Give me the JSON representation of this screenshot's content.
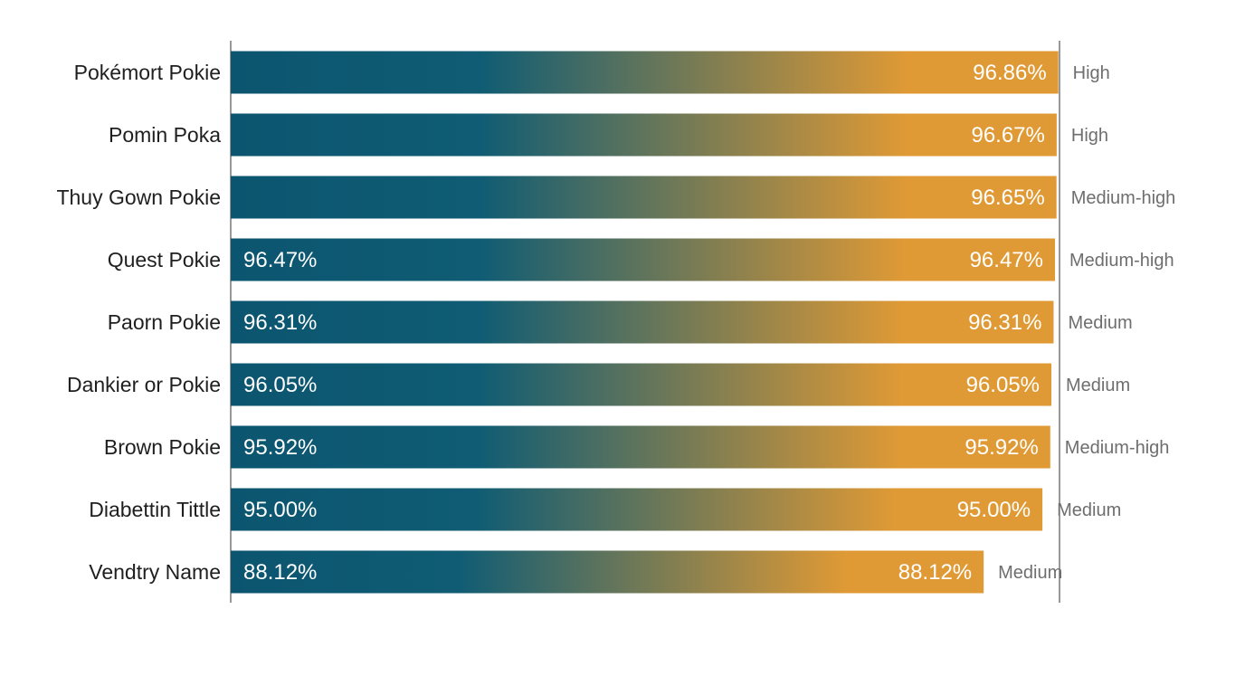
{
  "colors": {
    "bar_start": "#0c5570",
    "bar_mid": "#0f5c74",
    "bar_end": "#e09a35",
    "axis": "#555555"
  },
  "chart_data": {
    "type": "bar",
    "orientation": "horizontal",
    "categories": [
      "Pokémort Pokie",
      "Pomin Poka",
      "Thuy Gown Pokie",
      "Quest Pokie",
      "Paorn Pokie",
      "Dankier or Pokie",
      "Brown Pokie",
      "Diabettin Tittle",
      "Vendtry Name"
    ],
    "values": [
      96.86,
      96.67,
      96.65,
      96.47,
      96.31,
      96.05,
      95.92,
      95.0,
      88.12
    ],
    "value_labels": [
      "96.86%",
      "96.67%",
      "96.65%",
      "96.47%",
      "96.31%",
      "96.05%",
      "95.92%",
      "95.00%",
      "88.12%"
    ],
    "start_labels": [
      "",
      "",
      "",
      "96.47%",
      "96.31%",
      "96.05%",
      "95.92%",
      "95.00%",
      "88.12%"
    ],
    "ratings": [
      "High",
      "High",
      "Medium-high",
      "Medium-high",
      "Medium",
      "Medium",
      "Medium-high",
      "Medium",
      "Medium"
    ],
    "xlim": [
      0,
      97
    ],
    "grid": false,
    "legend": "none",
    "title": "",
    "xlabel": "",
    "ylabel": ""
  }
}
